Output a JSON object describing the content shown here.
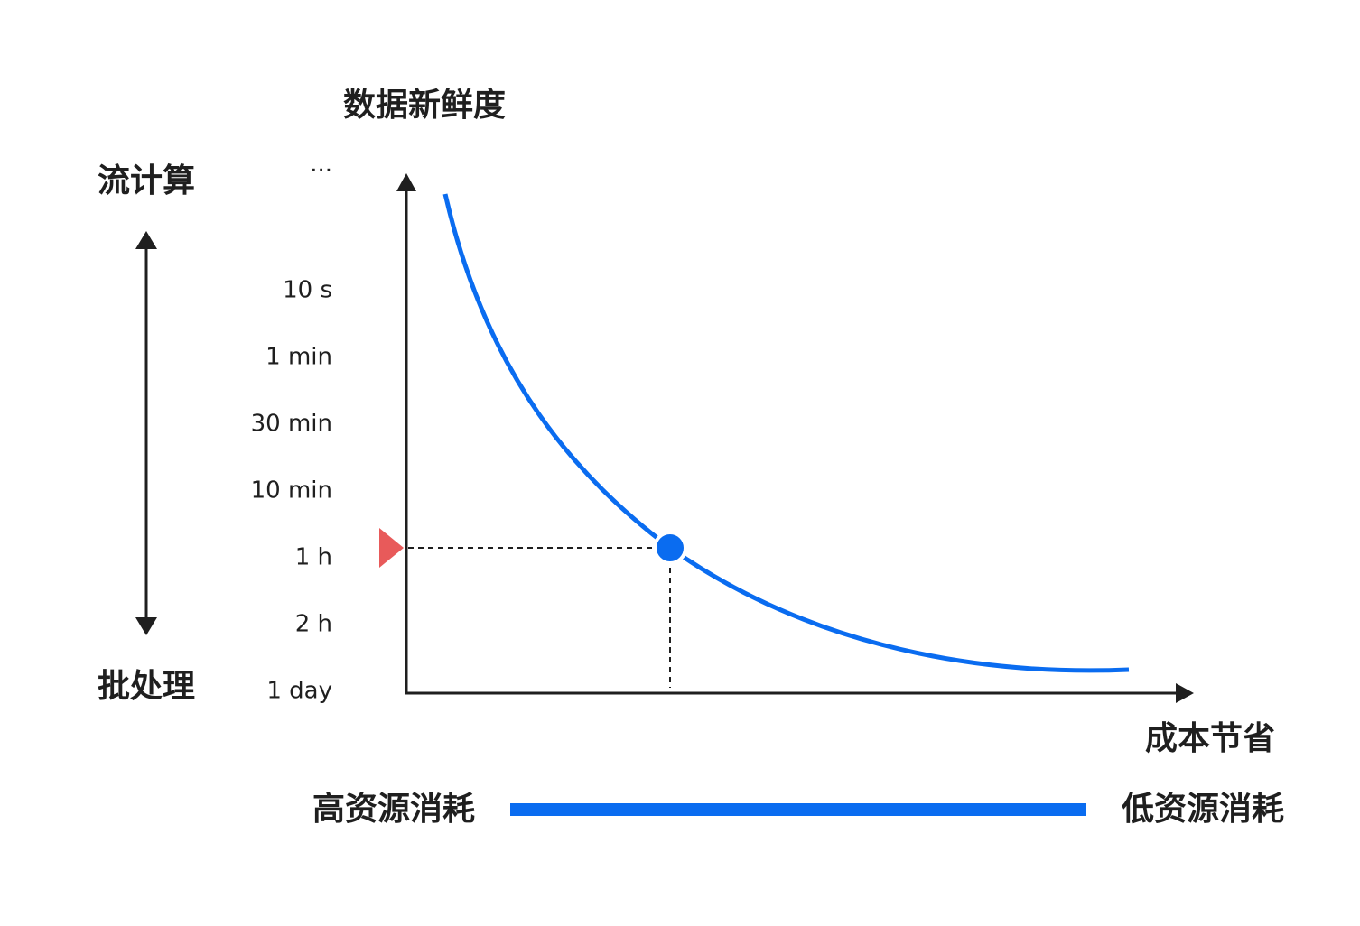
{
  "y_axis_title": "数据新鲜度",
  "x_axis_title": "成本节省",
  "left_scale": {
    "top": "流计算",
    "bottom": "批处理"
  },
  "y_labels": [
    "···",
    "10 s",
    "1 min",
    "30 min",
    "10 min",
    "1 h",
    "2 h",
    "1 day"
  ],
  "bottom_scale": {
    "left": "高资源消耗",
    "right": "低资源消耗"
  }
}
